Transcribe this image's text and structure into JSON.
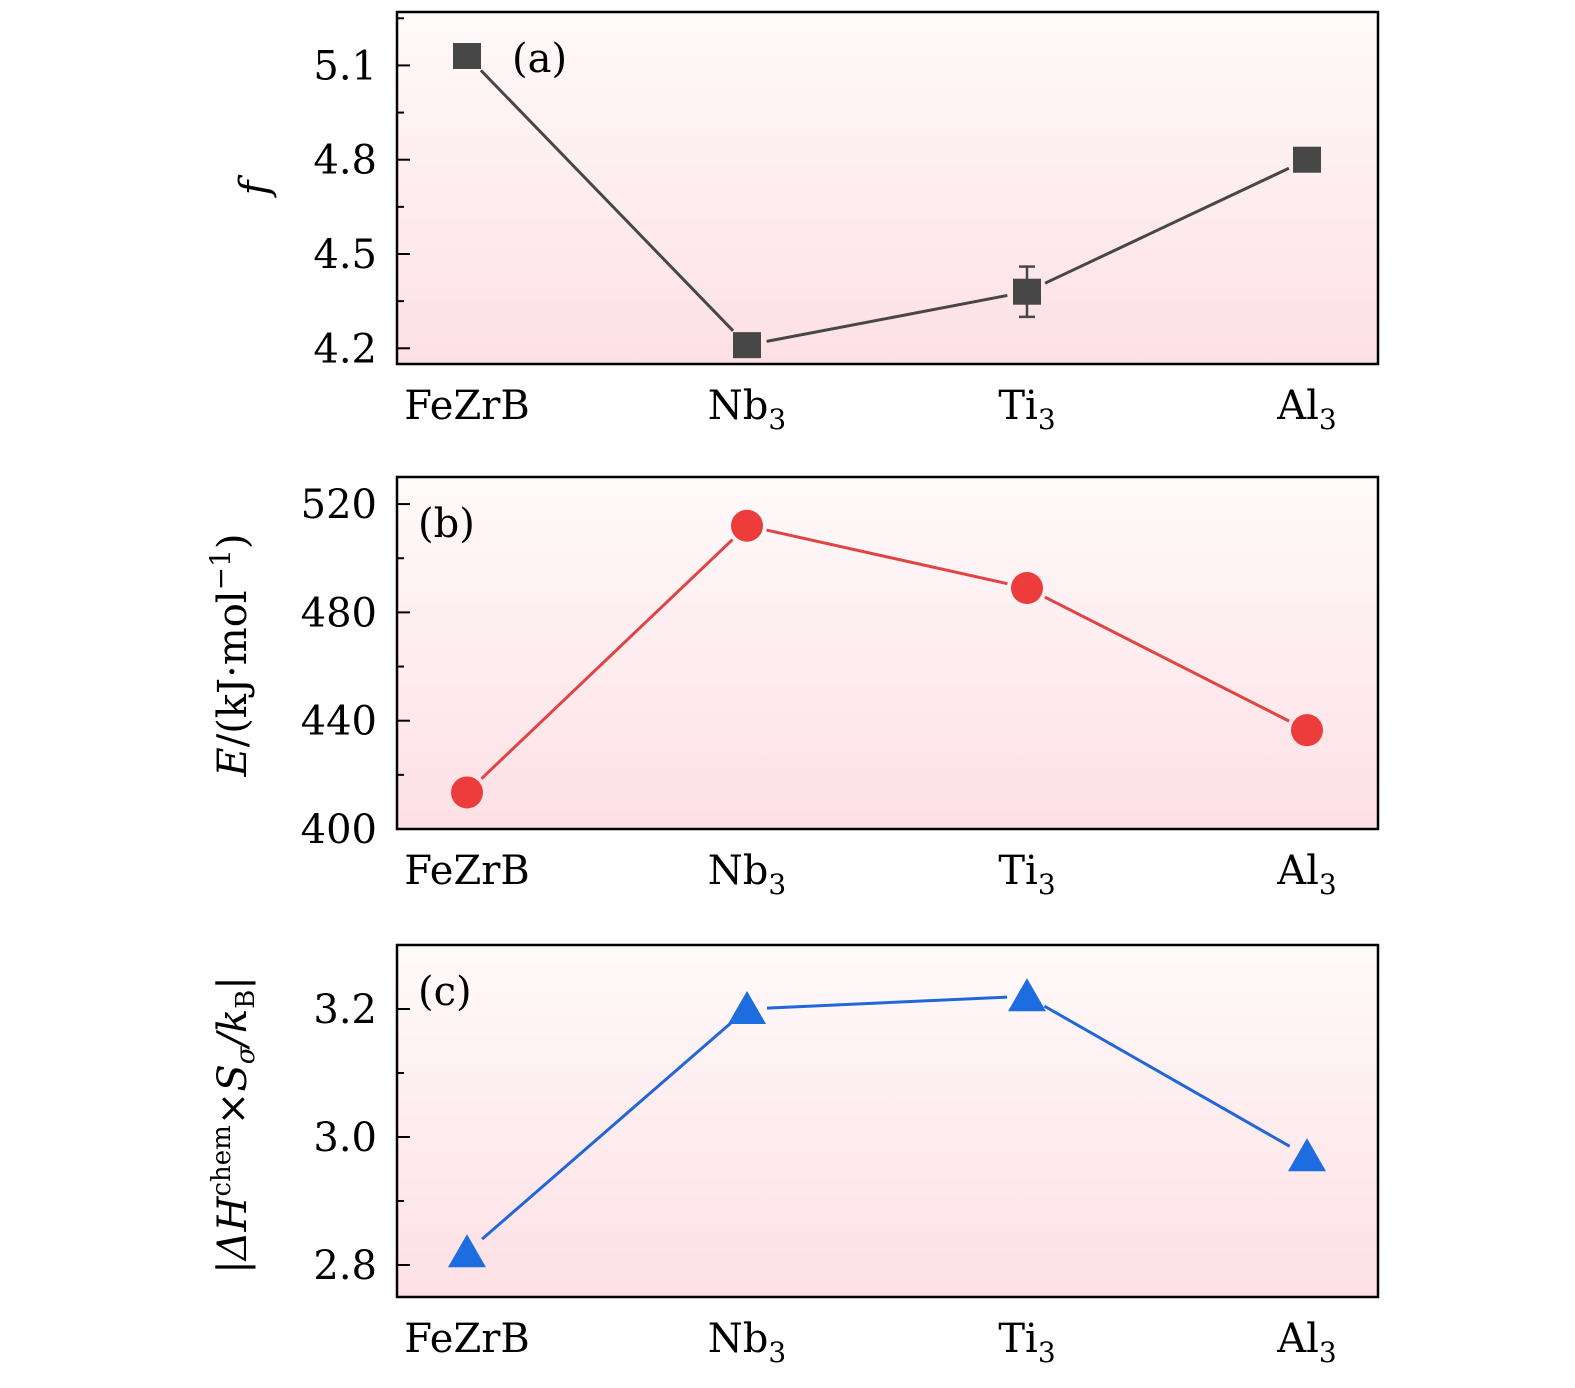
{
  "chart_data": [
    {
      "type": "line",
      "panel_label": "(a)",
      "categories": [
        "FeZrB",
        "Nb",
        "Ti",
        "Al"
      ],
      "category_subscripts": [
        "",
        "3",
        "3",
        "3"
      ],
      "ylabel": "f",
      "ylabel_parts": [
        "f"
      ],
      "ylim": [
        4.15,
        5.27
      ],
      "yticks": [
        4.2,
        4.5,
        4.8,
        5.1
      ],
      "ytick_labels": [
        "4.2",
        "4.5",
        "4.8",
        "5.1"
      ],
      "y_minor_step": 0.15,
      "values": [
        5.13,
        4.21,
        4.38,
        4.8
      ],
      "error": [
        0,
        0,
        0.08,
        0
      ],
      "marker": "square",
      "color": "#474747",
      "line_color": "#474747",
      "grid": false
    },
    {
      "type": "line",
      "panel_label": "(b)",
      "categories": [
        "FeZrB",
        "Nb",
        "Ti",
        "Al"
      ],
      "category_subscripts": [
        "",
        "3",
        "3",
        "3"
      ],
      "ylabel": "E/(kJ·mol−1)",
      "ylabel_parts": [
        "E",
        "/(kJ·mol",
        "−1",
        ")"
      ],
      "ylim": [
        400,
        530
      ],
      "yticks": [
        400,
        440,
        480,
        520
      ],
      "ytick_labels": [
        "400",
        "440",
        "480",
        "520"
      ],
      "y_minor_step": 20,
      "values": [
        413.5,
        512,
        489,
        436.5
      ],
      "error": [
        0,
        0,
        0,
        0
      ],
      "marker": "circle",
      "color": "#ec3c3c",
      "line_color": "#e04444",
      "grid": false
    },
    {
      "type": "line",
      "panel_label": "(c)",
      "categories": [
        "FeZrB",
        "Nb",
        "Ti",
        "Al"
      ],
      "category_subscripts": [
        "",
        "3",
        "3",
        "3"
      ],
      "ylabel": "|ΔHchem×Sσ/kB|",
      "ylabel_parts": [
        "|ΔH",
        "chem",
        "×S",
        "σ",
        "/k",
        "B",
        "|"
      ],
      "ylim": [
        2.75,
        3.3
      ],
      "yticks": [
        2.8,
        3.0,
        3.2
      ],
      "ytick_labels": [
        "2.8",
        "3.0",
        "3.2"
      ],
      "y_minor_step": 0.1,
      "values": [
        2.82,
        3.2,
        3.22,
        2.97
      ],
      "error": [
        0,
        0,
        0,
        0
      ],
      "marker": "triangle",
      "color": "#1d6ce0",
      "line_color": "#2266d8",
      "grid": false
    }
  ],
  "colors": {
    "background_top": "#fffafa",
    "background_bottom": "#fde0e5"
  }
}
